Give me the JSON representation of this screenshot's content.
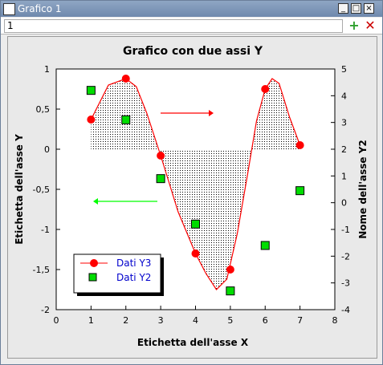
{
  "window": {
    "title": "Grafico 1",
    "toolbar_value": "1",
    "buttons": {
      "minimize": "_",
      "maximize": "□",
      "close": "×",
      "add_icon": "plus-icon",
      "remove_icon": "x-icon"
    }
  },
  "colors": {
    "y3": "#ff0000",
    "y2": "#00cc00",
    "legend_text": "#0000cc",
    "arrow_right": "#ff0000",
    "arrow_left": "#00ff00"
  },
  "chart_data": {
    "type": "line",
    "title": "Grafico con due assi Y",
    "xlabel": "Etichetta dell'asse X",
    "ylabel": "Etichetta dell'asse Y",
    "y2label": "Nome dell'asse Y2",
    "xlim": [
      0,
      8
    ],
    "ylim": [
      -2,
      1
    ],
    "y2lim": [
      -4,
      5
    ],
    "xticks": [
      "0",
      "1",
      "2",
      "3",
      "4",
      "5",
      "6",
      "7",
      "8"
    ],
    "yticks": [
      "1",
      "0,5",
      "0",
      "-0,5",
      "-1",
      "-1,5",
      "-2"
    ],
    "y2ticks": [
      "5",
      "4",
      "3",
      "2",
      "1",
      "0",
      "-1",
      "-2",
      "-3",
      "-4"
    ],
    "grid": false,
    "legend_position": "bottom-left",
    "series": [
      {
        "name": "Dati Y3",
        "axis": "y",
        "marker": "circle",
        "x": [
          1,
          2,
          3,
          4,
          5,
          6,
          7
        ],
        "values": [
          0.37,
          0.88,
          -0.08,
          -1.3,
          -1.5,
          0.75,
          0.05
        ]
      },
      {
        "name": "Dati Y2",
        "axis": "y2",
        "marker": "square",
        "x": [
          1,
          2,
          3,
          4,
          5,
          6,
          7
        ],
        "values": [
          4.2,
          3.1,
          0.9,
          -0.8,
          -3.3,
          -1.6,
          0.45
        ]
      }
    ],
    "curve": {
      "x": [
        1,
        1.5,
        2,
        2.3,
        2.6,
        3,
        3.5,
        4,
        4.3,
        4.6,
        4.9,
        5.2,
        5.5,
        5.75,
        6,
        6.2,
        6.4,
        6.7,
        7
      ],
      "y": [
        0.37,
        0.8,
        0.88,
        0.78,
        0.45,
        -0.08,
        -0.78,
        -1.3,
        -1.55,
        -1.75,
        -1.62,
        -1.05,
        -0.3,
        0.35,
        0.75,
        0.88,
        0.82,
        0.4,
        0.05
      ]
    }
  }
}
